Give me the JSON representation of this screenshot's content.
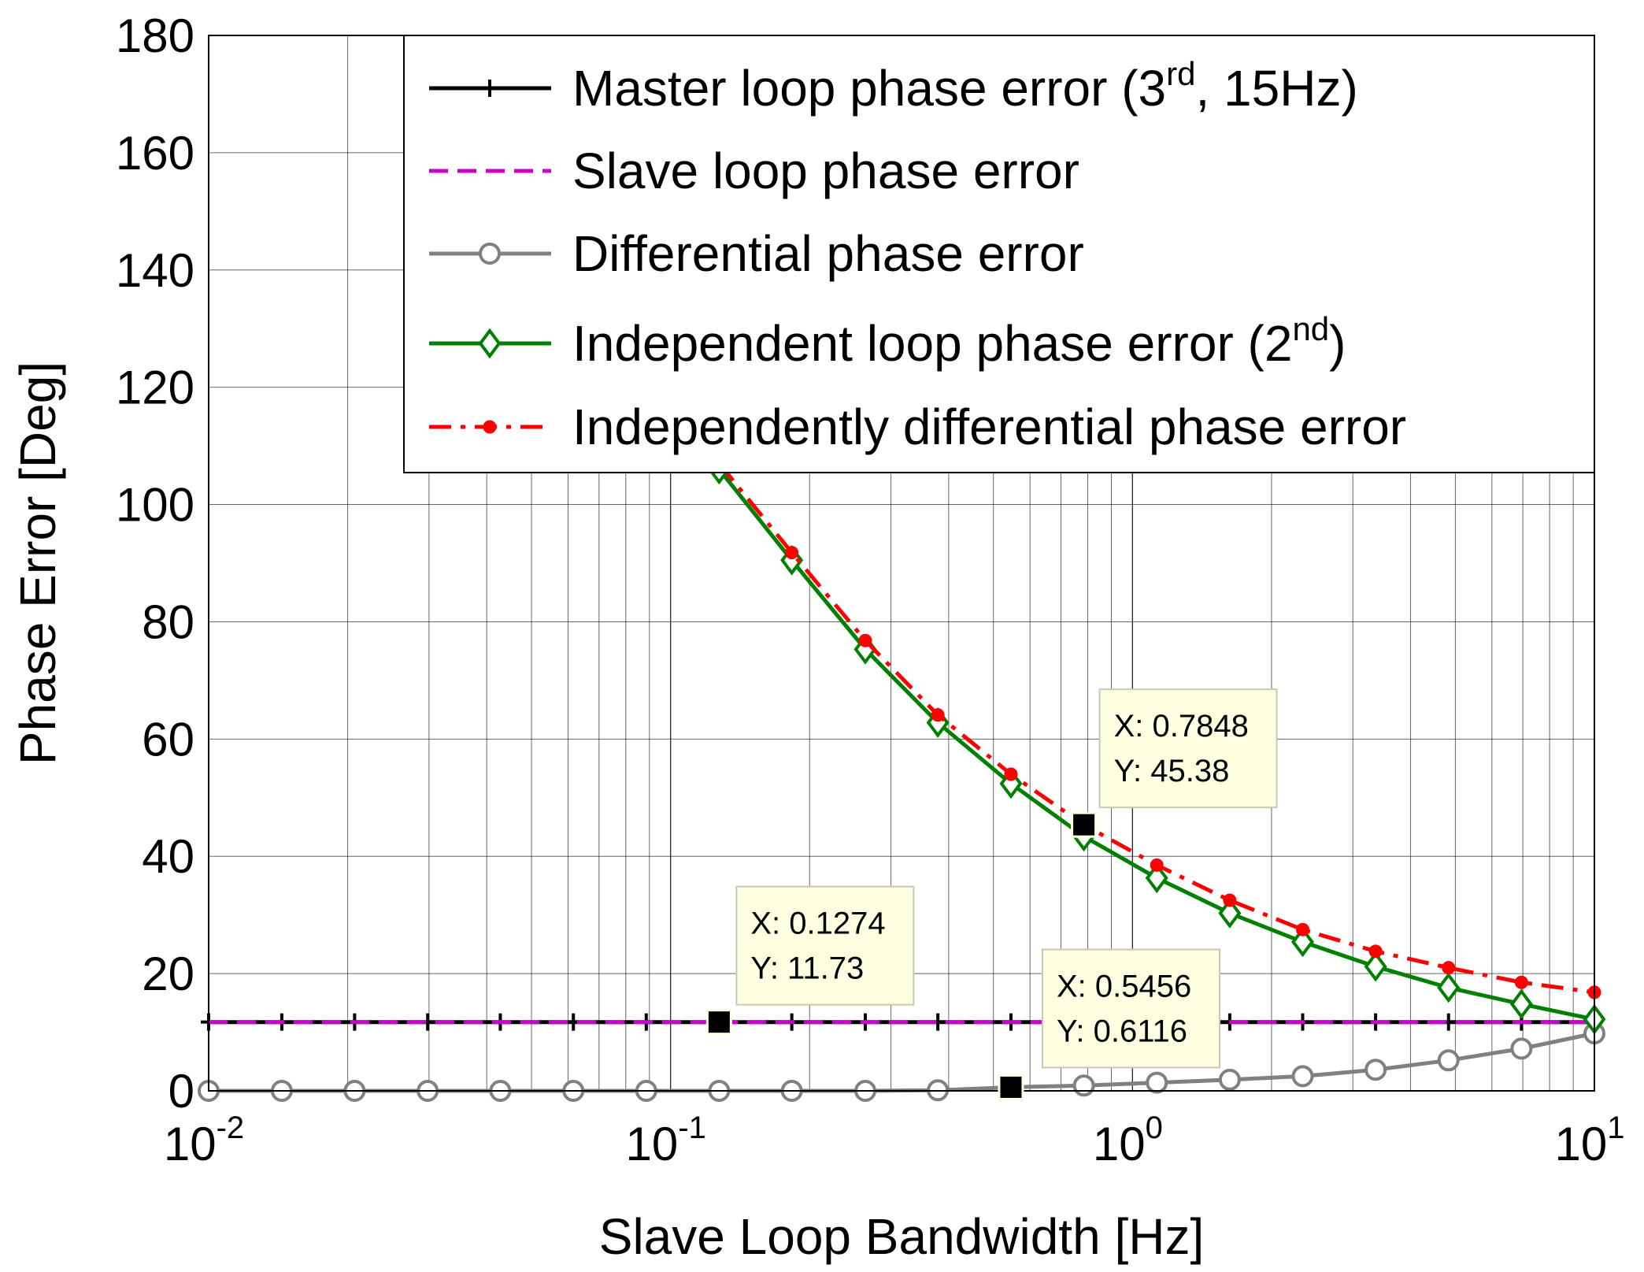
{
  "chart_data": {
    "type": "line",
    "xlabel": "Slave Loop Bandwidth [Hz]",
    "ylabel": "Phase Error [Deg]",
    "xscale": "log",
    "xlim": [
      0.01,
      10
    ],
    "ylim": [
      0,
      180
    ],
    "grid": true,
    "legend_position": "top-right",
    "x_ticks": [
      {
        "x": 0.01,
        "base": "10",
        "exp": "-2"
      },
      {
        "x": 0.1,
        "base": "10",
        "exp": "-1"
      },
      {
        "x": 1,
        "base": "10",
        "exp": "0"
      },
      {
        "x": 10,
        "base": "10",
        "exp": "1"
      }
    ],
    "y_ticks": [
      {
        "y": 0,
        "label": "0"
      },
      {
        "y": 20,
        "label": "20"
      },
      {
        "y": 40,
        "label": "40"
      },
      {
        "y": 60,
        "label": "60"
      },
      {
        "y": 80,
        "label": "80"
      },
      {
        "y": 100,
        "label": "100"
      },
      {
        "y": 120,
        "label": "120"
      },
      {
        "y": 140,
        "label": "140"
      },
      {
        "y": 160,
        "label": "160"
      },
      {
        "y": 180,
        "label": "180"
      }
    ],
    "series": [
      {
        "key": "master",
        "legend_parts": [
          {
            "t": "Master loop phase error (3"
          },
          {
            "t": "rd",
            "sup": true
          },
          {
            "t": ", 15Hz)"
          }
        ],
        "color": "#000000",
        "style": "solid",
        "marker": "plus",
        "x": [
          0.01,
          0.0144,
          0.0207,
          0.0298,
          0.0428,
          0.0616,
          0.0886,
          0.1274,
          0.183,
          0.264,
          0.379,
          0.5456,
          0.7848,
          1.129,
          1.624,
          2.336,
          3.36,
          4.833,
          6.952,
          10
        ],
        "y": [
          11.73,
          11.73,
          11.73,
          11.73,
          11.73,
          11.73,
          11.73,
          11.73,
          11.73,
          11.73,
          11.73,
          11.73,
          11.73,
          11.73,
          11.73,
          11.73,
          11.73,
          11.73,
          11.73,
          11.73
        ]
      },
      {
        "key": "slave",
        "legend_parts": [
          {
            "t": "Slave loop phase error"
          }
        ],
        "color": "#cc00cc",
        "style": "dashed",
        "marker": "none",
        "x": [
          0.01,
          10
        ],
        "y": [
          11.73,
          11.73
        ]
      },
      {
        "key": "differential",
        "legend_parts": [
          {
            "t": "Differential phase error"
          }
        ],
        "color": "#808080",
        "style": "solid",
        "marker": "circle",
        "x": [
          0.01,
          0.0144,
          0.0207,
          0.0298,
          0.0428,
          0.0616,
          0.0886,
          0.1274,
          0.183,
          0.264,
          0.379,
          0.5456,
          0.7848,
          1.129,
          1.624,
          2.336,
          3.36,
          4.833,
          6.952,
          10
        ],
        "y": [
          0,
          0,
          0,
          0,
          0,
          0,
          0,
          0,
          0,
          0,
          0.1,
          0.6116,
          0.9,
          1.4,
          1.9,
          2.5,
          3.6,
          5.2,
          7.2,
          9.8
        ]
      },
      {
        "key": "independent",
        "legend_parts": [
          {
            "t": "Independent loop phase error (2"
          },
          {
            "t": "nd",
            "sup": true
          },
          {
            "t": ")"
          }
        ],
        "color": "#008000",
        "style": "solid",
        "marker": "diamond",
        "x": [
          0.1274,
          0.183,
          0.264,
          0.379,
          0.5456,
          0.7848,
          1.129,
          1.624,
          2.336,
          3.36,
          4.833,
          6.952,
          10
        ],
        "y": [
          106,
          90.5,
          75.3,
          62.8,
          52.4,
          43.4,
          36.3,
          30.3,
          25.4,
          21.2,
          17.6,
          14.8,
          12.2
        ]
      },
      {
        "key": "indep_diff",
        "legend_parts": [
          {
            "t": "Independently differential phase error"
          }
        ],
        "color": "#ff0000",
        "style": "dashdot",
        "marker": "dot",
        "x": [
          0.1274,
          0.183,
          0.264,
          0.379,
          0.5456,
          0.7848,
          1.129,
          1.624,
          2.336,
          3.36,
          4.833,
          6.952,
          10
        ],
        "y": [
          107,
          91.8,
          76.8,
          64.1,
          54.0,
          45.38,
          38.5,
          32.5,
          27.5,
          23.8,
          21.0,
          18.5,
          16.8
        ]
      }
    ],
    "datatips": [
      {
        "x": 0.7848,
        "y": 45.38,
        "xtext": "X: 0.7848",
        "ytext": "Y: 45.38"
      },
      {
        "x": 0.1274,
        "y": 11.73,
        "xtext": "X: 0.1274",
        "ytext": "Y: 11.73"
      },
      {
        "x": 0.5456,
        "y": 0.6116,
        "xtext": "X: 0.5456",
        "ytext": "Y: 0.6116"
      }
    ]
  }
}
